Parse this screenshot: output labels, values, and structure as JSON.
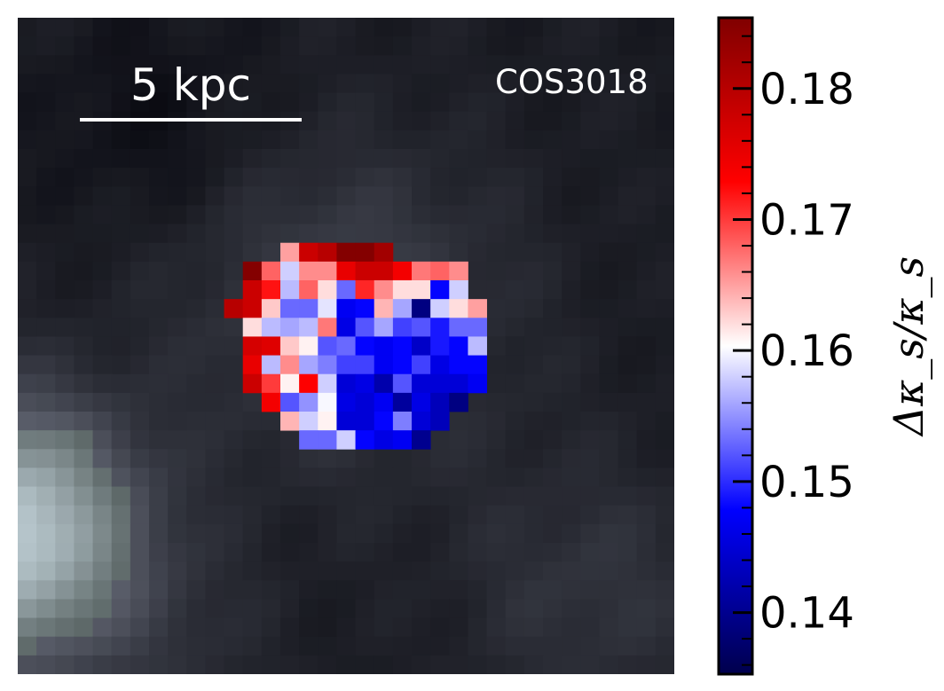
{
  "chart_data": {
    "type": "heatmap",
    "target": "COS3018",
    "scalebar_label": "5 kpc",
    "colorbar": {
      "label": "Δκ_s/κ_s",
      "vmin": 0.1353,
      "vmax": 0.1854,
      "ticks": [
        0.14,
        0.15,
        0.16,
        0.17,
        0.18
      ],
      "tick_labels": [
        "0.14",
        "0.15",
        "0.16",
        "0.17",
        "0.18"
      ],
      "cmap": "seismic",
      "colors": [
        "#00004c",
        "#0000ff",
        "#ffffff",
        "#ff0000",
        "#800000"
      ]
    },
    "background": {
      "description": "grayscale continuum image, bright source at left edge",
      "grid_size": [
        35,
        35
      ]
    },
    "map_grid": {
      "n": 35,
      "rows": {
        "12": [
          [
            14,
            0.165
          ],
          [
            15,
            0.178
          ],
          [
            16,
            0.18
          ],
          [
            17,
            0.185
          ],
          [
            18,
            0.185
          ],
          [
            19,
            0.182
          ]
        ],
        "13": [
          [
            12,
            0.185
          ],
          [
            13,
            0.168
          ],
          [
            14,
            0.158
          ],
          [
            15,
            0.166
          ],
          [
            16,
            0.166
          ],
          [
            17,
            0.175
          ],
          [
            18,
            0.178
          ],
          [
            19,
            0.178
          ],
          [
            20,
            0.174
          ],
          [
            21,
            0.167
          ],
          [
            22,
            0.168
          ],
          [
            23,
            0.166
          ]
        ],
        "14": [
          [
            12,
            0.178
          ],
          [
            13,
            0.172
          ],
          [
            14,
            0.157
          ],
          [
            15,
            0.168
          ],
          [
            16,
            0.162
          ],
          [
            17,
            0.153
          ],
          [
            18,
            0.171
          ],
          [
            19,
            0.166
          ],
          [
            20,
            0.162
          ],
          [
            21,
            0.162
          ],
          [
            22,
            0.148
          ],
          [
            23,
            0.158
          ]
        ],
        "15": [
          [
            11,
            0.18
          ],
          [
            12,
            0.178
          ],
          [
            13,
            0.163
          ],
          [
            14,
            0.153
          ],
          [
            15,
            0.153
          ],
          [
            16,
            0.159
          ],
          [
            17,
            0.147
          ],
          [
            18,
            0.148
          ],
          [
            19,
            0.164
          ],
          [
            20,
            0.156
          ],
          [
            21,
            0.139
          ],
          [
            22,
            0.158
          ],
          [
            23,
            0.162
          ],
          [
            24,
            0.165
          ]
        ],
        "16": [
          [
            12,
            0.162
          ],
          [
            13,
            0.157
          ],
          [
            14,
            0.156
          ],
          [
            15,
            0.157
          ],
          [
            16,
            0.167
          ],
          [
            17,
            0.146
          ],
          [
            18,
            0.152
          ],
          [
            19,
            0.156
          ],
          [
            20,
            0.151
          ],
          [
            21,
            0.152
          ],
          [
            22,
            0.149
          ],
          [
            23,
            0.153
          ],
          [
            24,
            0.153
          ]
        ],
        "17": [
          [
            12,
            0.177
          ],
          [
            13,
            0.176
          ],
          [
            14,
            0.163
          ],
          [
            15,
            0.161
          ],
          [
            16,
            0.152
          ],
          [
            17,
            0.153
          ],
          [
            18,
            0.148
          ],
          [
            19,
            0.147
          ],
          [
            20,
            0.148
          ],
          [
            21,
            0.144
          ],
          [
            22,
            0.149
          ],
          [
            23,
            0.148
          ],
          [
            24,
            0.157
          ]
        ],
        "18": [
          [
            12,
            0.175
          ],
          [
            13,
            0.157
          ],
          [
            14,
            0.166
          ],
          [
            15,
            0.156
          ],
          [
            16,
            0.154
          ],
          [
            17,
            0.151
          ],
          [
            18,
            0.151
          ],
          [
            19,
            0.147
          ],
          [
            20,
            0.148
          ],
          [
            21,
            0.151
          ],
          [
            22,
            0.146
          ],
          [
            23,
            0.148
          ],
          [
            24,
            0.148
          ]
        ],
        "19": [
          [
            12,
            0.178
          ],
          [
            13,
            0.17
          ],
          [
            14,
            0.161
          ],
          [
            15,
            0.173
          ],
          [
            16,
            0.158
          ],
          [
            17,
            0.145
          ],
          [
            18,
            0.146
          ],
          [
            19,
            0.142
          ],
          [
            20,
            0.152
          ],
          [
            21,
            0.145
          ],
          [
            22,
            0.145
          ],
          [
            23,
            0.145
          ],
          [
            24,
            0.147
          ]
        ],
        "20": [
          [
            13,
            0.174
          ],
          [
            14,
            0.152
          ],
          [
            15,
            0.155
          ],
          [
            16,
            0.16
          ],
          [
            17,
            0.146
          ],
          [
            18,
            0.145
          ],
          [
            19,
            0.147
          ],
          [
            20,
            0.141
          ],
          [
            21,
            0.146
          ],
          [
            22,
            0.143
          ],
          [
            23,
            0.139
          ]
        ],
        "21": [
          [
            14,
            0.164
          ],
          [
            15,
            0.158
          ],
          [
            16,
            0.161
          ],
          [
            17,
            0.145
          ],
          [
            18,
            0.145
          ],
          [
            19,
            0.148
          ],
          [
            20,
            0.154
          ],
          [
            21,
            0.145
          ],
          [
            22,
            0.143
          ]
        ],
        "22": [
          [
            15,
            0.153
          ],
          [
            16,
            0.153
          ],
          [
            17,
            0.158
          ],
          [
            18,
            0.148
          ],
          [
            19,
            0.146
          ],
          [
            20,
            0.147
          ],
          [
            21,
            0.14
          ]
        ]
      }
    }
  }
}
